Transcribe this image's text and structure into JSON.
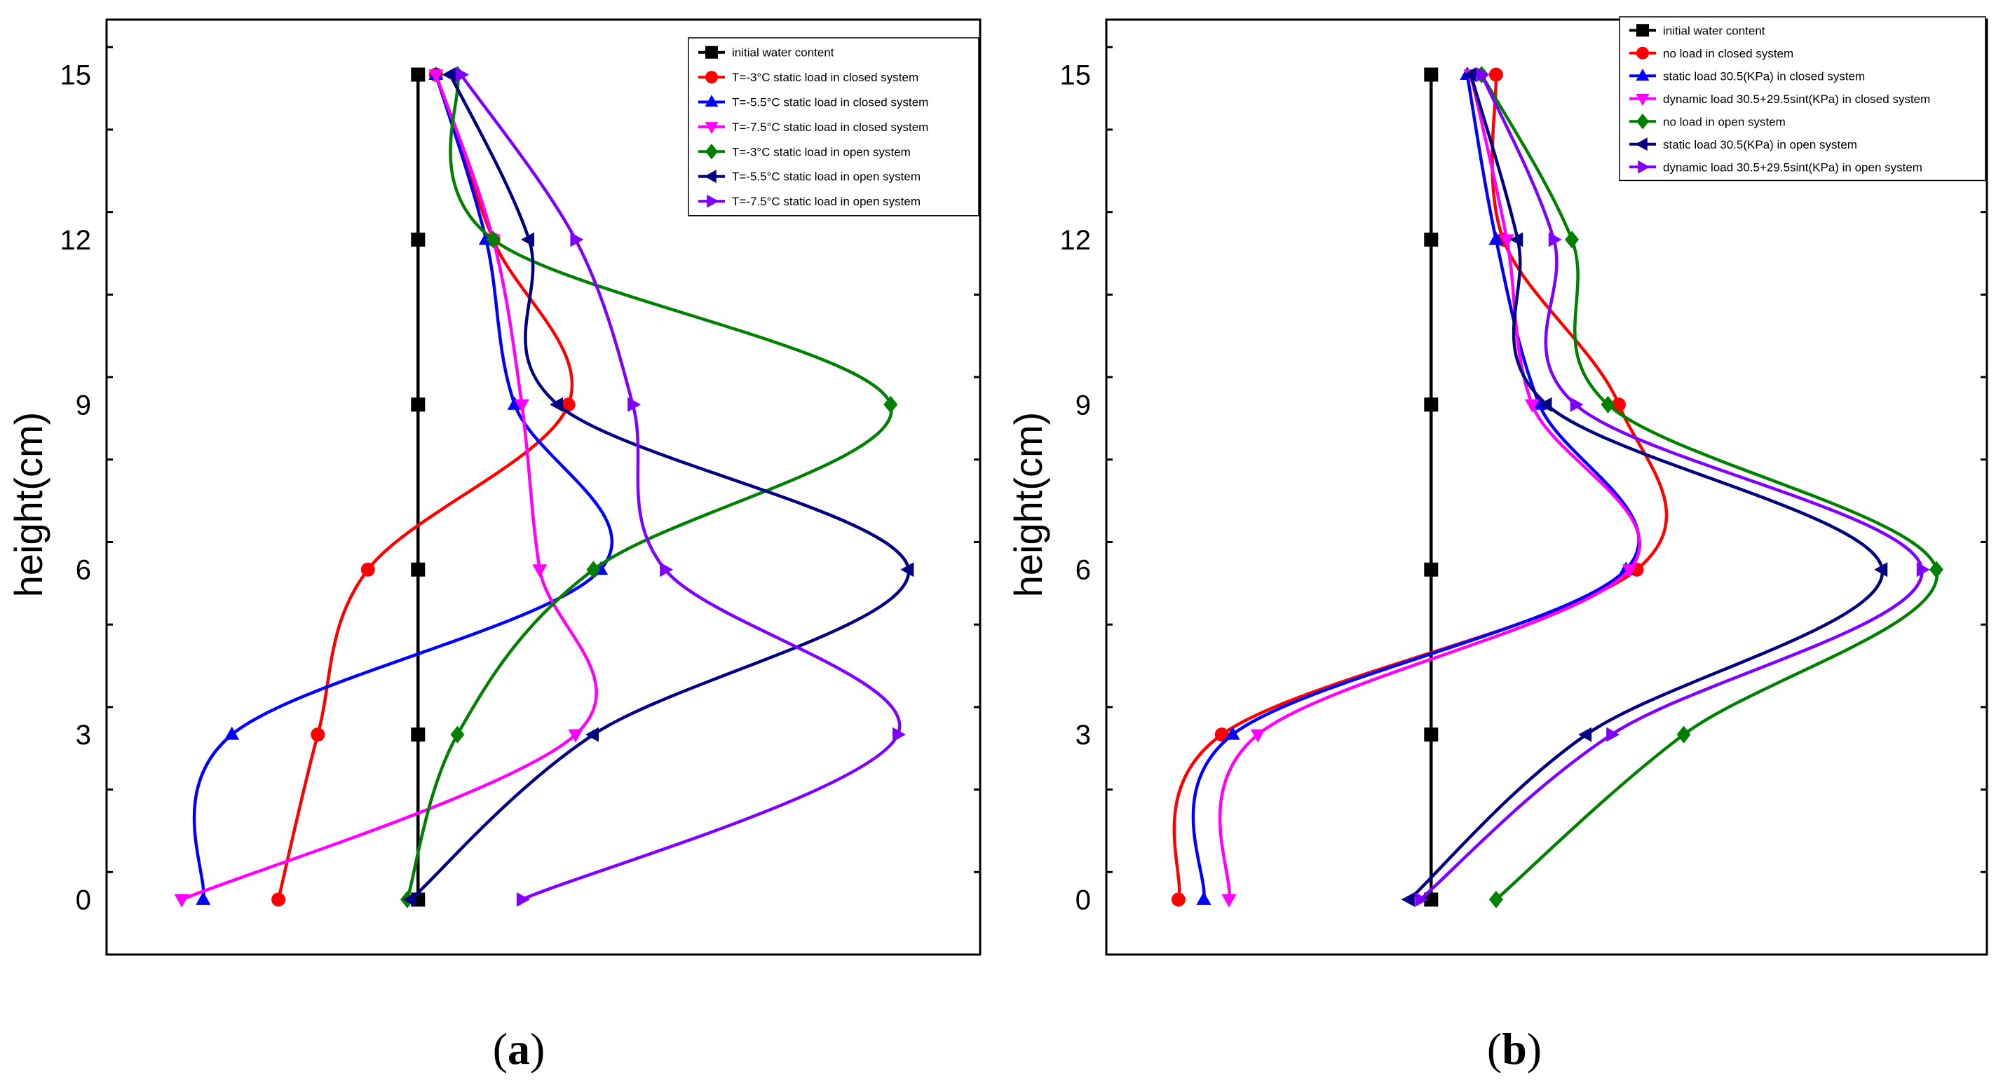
{
  "chart_data": [
    {
      "type": "line",
      "panel_label": "a",
      "ylabel": "height(cm)",
      "xlabel": "",
      "ylim": [
        -1,
        16
      ],
      "yticks": [
        0,
        3,
        6,
        9,
        12,
        15
      ],
      "xlim": [
        0,
        12.2
      ],
      "x_unit_note": "x-axis has no tick labels; values are relative positions",
      "legend_position": "top-right",
      "series": [
        {
          "name": "initial water content",
          "color": "#000000",
          "marker": "square",
          "x": [
            4.35,
            4.35,
            4.35,
            4.35,
            4.35,
            4.35
          ],
          "y": [
            0,
            3,
            6,
            9,
            12,
            15
          ]
        },
        {
          "name": "T=-3°C static load in closed system",
          "color": "#ff0000",
          "marker": "circle",
          "x": [
            2.4,
            2.95,
            3.65,
            6.45,
            5.4,
            4.6
          ],
          "y": [
            0,
            3,
            6,
            9,
            12,
            15
          ]
        },
        {
          "name": "T=-5.5°C static load in closed system",
          "color": "#0000ff",
          "marker": "triangle-up",
          "x": [
            1.35,
            1.75,
            6.9,
            5.7,
            5.3,
            4.6
          ],
          "y": [
            0,
            3,
            6,
            9,
            12,
            15
          ]
        },
        {
          "name": "T=-7.5°C static load in closed system",
          "color": "#ff00ff",
          "marker": "triangle-down",
          "x": [
            1.05,
            6.55,
            6.05,
            5.8,
            5.4,
            4.6
          ],
          "y": [
            0,
            3,
            6,
            9,
            12,
            15
          ]
        },
        {
          "name": "T=-3°C static load in open system",
          "color": "#008000",
          "marker": "diamond",
          "x": [
            4.2,
            4.9,
            6.8,
            10.95,
            5.4,
            4.9
          ],
          "y": [
            0,
            3,
            6,
            9,
            12,
            15
          ]
        },
        {
          "name": "T=-5.5°C static load in open system",
          "color": "#000080",
          "marker": "triangle-left",
          "x": [
            4.25,
            6.8,
            11.2,
            6.3,
            5.9,
            4.8
          ],
          "y": [
            0,
            3,
            6,
            9,
            12,
            15
          ]
        },
        {
          "name": "T=-7.5°C static load in open system",
          "color": "#8000ff",
          "marker": "triangle-right",
          "x": [
            5.8,
            11.05,
            7.8,
            7.35,
            6.55,
            4.95
          ],
          "y": [
            0,
            3,
            6,
            9,
            12,
            15
          ]
        }
      ]
    },
    {
      "type": "line",
      "panel_label": "b",
      "ylabel": "height(cm)",
      "xlabel": "",
      "ylim": [
        -1,
        16
      ],
      "yticks": [
        0,
        3,
        6,
        9,
        12,
        15
      ],
      "xlim": [
        0,
        12.2
      ],
      "x_unit_note": "x-axis has no tick labels; values are relative positions",
      "legend_position": "top-right",
      "series": [
        {
          "name": "initial water content",
          "color": "#000000",
          "marker": "square",
          "x": [
            4.5,
            4.5,
            4.5,
            4.5,
            4.5,
            4.5
          ],
          "y": [
            0,
            3,
            6,
            9,
            12,
            15
          ]
        },
        {
          "name": "no load in closed system",
          "color": "#ff0000",
          "marker": "circle",
          "x": [
            1.0,
            1.6,
            7.35,
            7.1,
            5.5,
            5.4
          ],
          "y": [
            0,
            3,
            6,
            9,
            12,
            15
          ]
        },
        {
          "name": "static load 30.5(KPa) in closed system",
          "color": "#0000ff",
          "marker": "triangle-up",
          "x": [
            1.35,
            1.75,
            7.2,
            6.0,
            5.4,
            5.0
          ],
          "y": [
            0,
            3,
            6,
            9,
            12,
            15
          ]
        },
        {
          "name": "dynamic load 30.5+29.5sint(KPa) in closed system",
          "color": "#ff00ff",
          "marker": "triangle-down",
          "x": [
            1.7,
            2.1,
            7.25,
            5.9,
            5.55,
            5.05
          ],
          "y": [
            0,
            3,
            6,
            9,
            12,
            15
          ]
        },
        {
          "name": "no load in open system",
          "color": "#008000",
          "marker": "diamond",
          "x": [
            5.4,
            8.0,
            11.5,
            6.95,
            6.45,
            5.2
          ],
          "y": [
            0,
            3,
            6,
            9,
            12,
            15
          ]
        },
        {
          "name": "static load 30.5(KPa) in  open system",
          "color": "#000080",
          "marker": "triangle-left",
          "x": [
            4.2,
            6.65,
            10.75,
            6.1,
            5.7,
            5.05
          ],
          "y": [
            0,
            3,
            6,
            9,
            12,
            15
          ]
        },
        {
          "name": "dynamic load 30.5+29.5sint(KPa) in open system",
          "color": "#8000ff",
          "marker": "triangle-right",
          "x": [
            4.35,
            7.0,
            11.3,
            6.5,
            6.2,
            5.2
          ],
          "y": [
            0,
            3,
            6,
            9,
            12,
            15
          ]
        }
      ]
    }
  ],
  "panel_labels": {
    "a": {
      "open": "(",
      "letter": "a",
      "close": ")"
    },
    "b": {
      "open": "(",
      "letter": "b",
      "close": ")"
    }
  }
}
